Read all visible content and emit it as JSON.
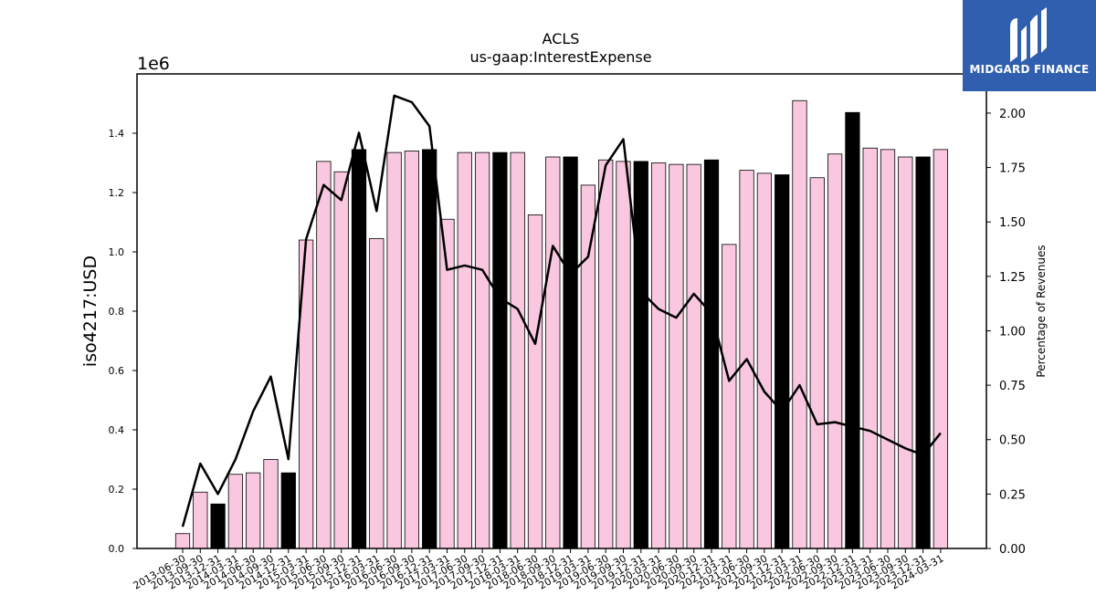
{
  "chart_data": {
    "type": "bar",
    "title": "ACLS",
    "subtitle": "us-gaap:InterestExpense",
    "ylabel": "iso4217:USD",
    "y_offset_label": "1e6",
    "y2label": "Percentage of Revenues",
    "ylim": [
      0,
      1.6
    ],
    "y2lim": [
      0,
      2.18
    ],
    "yticks": [
      "0.0",
      "0.2",
      "0.4",
      "0.6",
      "0.8",
      "1.0",
      "1.2",
      "1.4"
    ],
    "y2ticks": [
      "0.00",
      "0.25",
      "0.50",
      "0.75",
      "1.00",
      "1.25",
      "1.50",
      "1.75",
      "2.00"
    ],
    "categories": [
      "2013-06-30",
      "2013-09-30",
      "2013-12-31",
      "2014-03-31",
      "2014-06-30",
      "2014-09-30",
      "2014-12-31",
      "2015-03-31",
      "2015-06-30",
      "2015-09-30",
      "2015-12-31",
      "2016-03-31",
      "2016-06-30",
      "2016-09-30",
      "2016-12-31",
      "2017-03-31",
      "2017-06-30",
      "2017-09-30",
      "2017-12-31",
      "2018-03-31",
      "2018-06-30",
      "2018-09-30",
      "2018-12-31",
      "2019-03-31",
      "2019-06-30",
      "2019-09-30",
      "2019-12-31",
      "2020-03-31",
      "2020-06-30",
      "2020-09-30",
      "2020-12-31",
      "2021-03-31",
      "2021-06-30",
      "2021-09-30",
      "2021-12-31",
      "2022-03-31",
      "2022-06-30",
      "2022-09-30",
      "2022-12-31",
      "2023-03-31",
      "2023-06-30",
      "2023-09-30",
      "2023-12-31",
      "2024-03-31"
    ],
    "values": [
      0.05,
      0.19,
      0.15,
      0.25,
      0.255,
      0.3,
      0.255,
      1.04,
      1.305,
      1.27,
      1.345,
      1.045,
      1.335,
      1.34,
      1.345,
      1.11,
      1.335,
      1.335,
      1.335,
      1.335,
      1.125,
      1.32,
      1.32,
      1.225,
      1.31,
      1.305,
      1.305,
      1.3,
      1.295,
      1.295,
      1.31,
      1.025,
      1.275,
      1.265,
      1.26,
      1.51,
      1.25,
      1.33,
      1.47,
      1.35,
      1.345,
      1.32,
      1.32,
      1.345
    ],
    "highlight": [
      false,
      false,
      true,
      false,
      false,
      false,
      true,
      false,
      false,
      false,
      true,
      false,
      false,
      false,
      true,
      false,
      false,
      false,
      true,
      false,
      false,
      false,
      true,
      false,
      false,
      false,
      true,
      false,
      false,
      false,
      true,
      false,
      false,
      false,
      true,
      false,
      false,
      false,
      true,
      false,
      false,
      false,
      true,
      false
    ],
    "line_series": {
      "name": "Percentage of Revenues",
      "values": [
        0.1,
        0.39,
        0.25,
        0.41,
        0.63,
        0.79,
        0.41,
        1.42,
        1.67,
        1.6,
        1.91,
        1.55,
        2.08,
        2.05,
        1.94,
        1.28,
        1.3,
        1.28,
        1.15,
        1.1,
        0.94,
        1.39,
        1.26,
        1.34,
        1.76,
        1.88,
        1.18,
        1.1,
        1.06,
        1.17,
        1.08,
        0.77,
        0.87,
        0.72,
        0.63,
        0.75,
        0.57,
        0.58,
        0.56,
        0.54,
        0.5,
        0.46,
        0.43,
        0.53
      ]
    },
    "colors": {
      "bar": "#f9c8e0",
      "bar_highlight": "#000000",
      "bar_edge": "#000000",
      "line": "#000000"
    },
    "grid": false,
    "legend": "none"
  },
  "logo": {
    "text": "MIDGARD FINANCE",
    "background": "#2f5fae"
  }
}
